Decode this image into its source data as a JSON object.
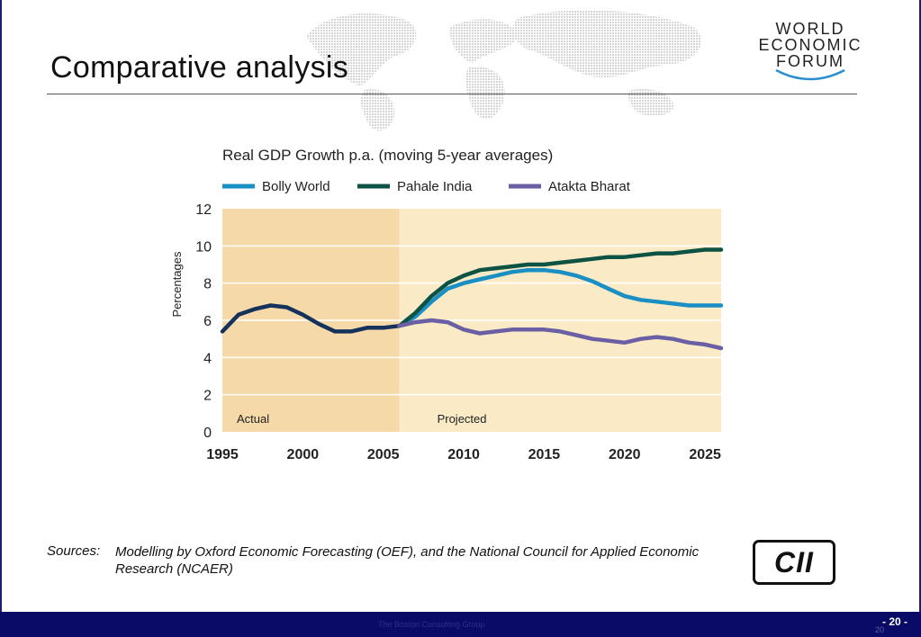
{
  "slide": {
    "title": "Comparative analysis",
    "logo_lines": [
      "WORLD",
      "ECONOMIC",
      "FORUM"
    ],
    "sources_label": "Sources:",
    "sources_text": "Modelling by Oxford Economic Forecasting (OEF), and the National Council for Applied Economic Research (NCAER)",
    "cii_logo": "CII",
    "footer_note": "The Boston Consulting Group",
    "page_number": "- 20 -",
    "page_number_sub": "20"
  },
  "chart_data": {
    "type": "line",
    "title": "Real GDP Growth p.a. (moving 5-year averages)",
    "ylabel": "Percentages",
    "ylim": [
      0,
      12
    ],
    "xlim": [
      1995,
      2026
    ],
    "yticks": [
      "0",
      "2",
      "4",
      "6",
      "8",
      "10",
      "12"
    ],
    "xticks": [
      {
        "value": 1995,
        "label": "1995"
      },
      {
        "value": 2000,
        "label": "2000"
      },
      {
        "value": 2005,
        "label": "2005"
      },
      {
        "value": 2010,
        "label": "2010"
      },
      {
        "value": 2015,
        "label": "2015"
      },
      {
        "value": 2020,
        "label": "2020"
      },
      {
        "value": 2025,
        "label": "2025"
      }
    ],
    "regions": [
      {
        "label": "Actual",
        "from": 1995,
        "to": 2006,
        "color": "#f5d9a8"
      },
      {
        "label": "Projected",
        "from": 2006,
        "to": 2026,
        "color": "#faebc6"
      }
    ],
    "grid": true,
    "legend_position": "top",
    "series": [
      {
        "name": "",
        "color": "#15325c",
        "x": [
          1995,
          1996,
          1997,
          1998,
          1999,
          2000,
          2001,
          2002,
          2003,
          2004,
          2005,
          2006
        ],
        "y": [
          5.4,
          6.3,
          6.6,
          6.8,
          6.7,
          6.3,
          5.8,
          5.4,
          5.4,
          5.6,
          5.6,
          5.7
        ]
      },
      {
        "name": "Bolly World",
        "color": "#1a8fc4",
        "x": [
          2006,
          2007,
          2008,
          2009,
          2010,
          2011,
          2012,
          2013,
          2014,
          2015,
          2016,
          2017,
          2018,
          2019,
          2020,
          2021,
          2022,
          2023,
          2024,
          2025,
          2026
        ],
        "y": [
          5.7,
          6.2,
          7.0,
          7.7,
          8.0,
          8.2,
          8.4,
          8.6,
          8.7,
          8.7,
          8.6,
          8.4,
          8.1,
          7.7,
          7.3,
          7.1,
          7.0,
          6.9,
          6.8,
          6.8,
          6.8
        ]
      },
      {
        "name": "Pahale India",
        "color": "#0d5344",
        "x": [
          2006,
          2007,
          2008,
          2009,
          2010,
          2011,
          2012,
          2013,
          2014,
          2015,
          2016,
          2017,
          2018,
          2019,
          2020,
          2021,
          2022,
          2023,
          2024,
          2025,
          2026
        ],
        "y": [
          5.7,
          6.4,
          7.3,
          8.0,
          8.4,
          8.7,
          8.8,
          8.9,
          9.0,
          9.0,
          9.1,
          9.2,
          9.3,
          9.4,
          9.4,
          9.5,
          9.6,
          9.6,
          9.7,
          9.8,
          9.8
        ]
      },
      {
        "name": "Atakta Bharat",
        "color": "#6a5fa4",
        "x": [
          2006,
          2007,
          2008,
          2009,
          2010,
          2011,
          2012,
          2013,
          2014,
          2015,
          2016,
          2017,
          2018,
          2019,
          2020,
          2021,
          2022,
          2023,
          2024,
          2025,
          2026
        ],
        "y": [
          5.7,
          5.9,
          6.0,
          5.9,
          5.5,
          5.3,
          5.4,
          5.5,
          5.5,
          5.5,
          5.4,
          5.2,
          5.0,
          4.9,
          4.8,
          5.0,
          5.1,
          5.0,
          4.8,
          4.7,
          4.5
        ]
      }
    ]
  }
}
